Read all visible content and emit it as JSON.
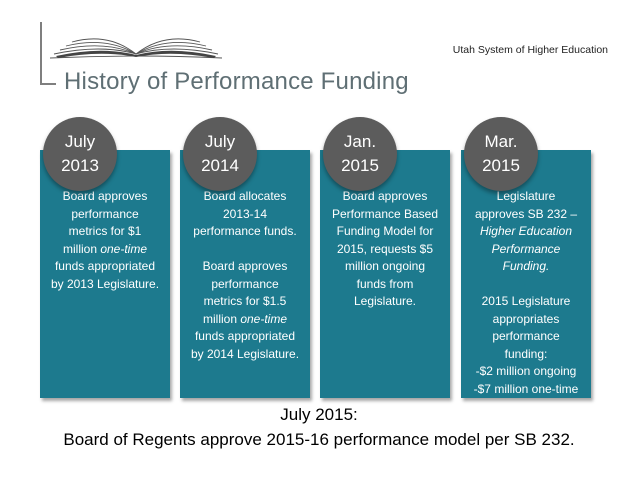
{
  "header": {
    "organization": "Utah System of Higher Education",
    "title": "History of Performance Funding"
  },
  "timeline": [
    {
      "month": "July",
      "year": "2013",
      "lines": [
        {
          "text": "Board approves"
        },
        {
          "text": "performance"
        },
        {
          "text": "metrics for $1"
        },
        {
          "text": "million ",
          "italic_tail": "one-time"
        },
        {
          "text": "funds appropriated"
        },
        {
          "text": "by 2013 Legislature."
        }
      ]
    },
    {
      "month": "July",
      "year": "2014",
      "lines": [
        {
          "text": "Board allocates"
        },
        {
          "text": "2013-14"
        },
        {
          "text": "performance funds."
        },
        {
          "text": ""
        },
        {
          "text": "Board approves"
        },
        {
          "text": "performance"
        },
        {
          "text": "metrics for $1.5"
        },
        {
          "text": "million ",
          "italic_tail": "one-time"
        },
        {
          "text": "funds appropriated"
        },
        {
          "text": "by 2014 Legislature."
        }
      ]
    },
    {
      "month": "Jan.",
      "year": "2015",
      "lines": [
        {
          "text": "Board approves"
        },
        {
          "text": "Performance Based"
        },
        {
          "text": "Funding Model for"
        },
        {
          "text": "2015, requests $5"
        },
        {
          "text": "million ongoing"
        },
        {
          "text": "funds from"
        },
        {
          "text": "Legislature."
        }
      ]
    },
    {
      "month": "Mar.",
      "year": "2015",
      "lines": [
        {
          "text": "Legislature"
        },
        {
          "text": "approves SB 232 –"
        },
        {
          "text": "",
          "italic_tail": "Higher Education"
        },
        {
          "text": "",
          "italic_tail": "Performance"
        },
        {
          "text": "",
          "italic_tail": "Funding."
        },
        {
          "text": ""
        },
        {
          "text": "2015 Legislature"
        },
        {
          "text": "appropriates"
        },
        {
          "text": "performance"
        },
        {
          "text": "funding:"
        },
        {
          "text": "-$2 million ongoing"
        },
        {
          "text": "-$7 million one-time"
        }
      ]
    }
  ],
  "summary": {
    "line1": "July 2015:",
    "line2": "Board of Regents approve 2015-16 performance model per SB 232."
  },
  "colors": {
    "panel": "#1d7a8e",
    "badge": "#5c5c5c",
    "title": "#5f6f74"
  }
}
